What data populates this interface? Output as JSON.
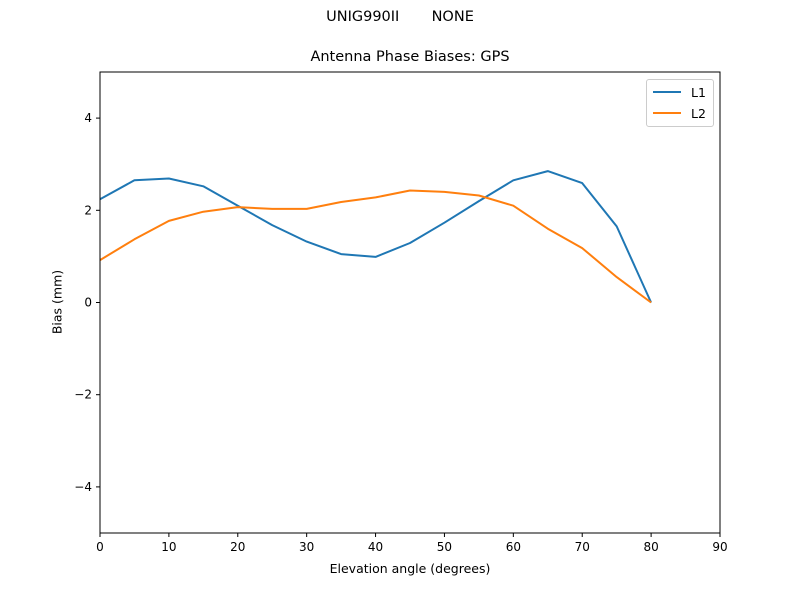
{
  "header": {
    "suptitle": "UNIG990II       NONE",
    "title": "Antenna Phase Biases: GPS"
  },
  "axes": {
    "xlabel": "Elevation angle (degrees)",
    "ylabel": "Bias (mm)"
  },
  "legend": {
    "items": [
      {
        "label": "L1",
        "color": "#1f77b4"
      },
      {
        "label": "L2",
        "color": "#ff7f0e"
      }
    ]
  },
  "chart_data": {
    "type": "line",
    "title": "Antenna Phase Biases: GPS",
    "suptitle": "UNIG990II       NONE",
    "xlabel": "Elevation angle (degrees)",
    "ylabel": "Bias (mm)",
    "xlim": [
      0,
      90
    ],
    "ylim": [
      -5,
      5
    ],
    "xticks": [
      0,
      10,
      20,
      30,
      40,
      50,
      60,
      70,
      80,
      90
    ],
    "yticks": [
      -4,
      -2,
      0,
      2,
      4
    ],
    "grid": false,
    "legend_position": "upper right",
    "x": [
      0,
      5,
      10,
      15,
      20,
      25,
      30,
      35,
      40,
      45,
      50,
      55,
      60,
      65,
      70,
      75,
      80
    ],
    "series": [
      {
        "name": "L1",
        "color": "#1f77b4",
        "values": [
          2.24,
          2.65,
          2.69,
          2.52,
          2.1,
          1.68,
          1.32,
          1.05,
          0.99,
          1.29,
          1.73,
          2.2,
          2.65,
          2.85,
          2.59,
          1.65,
          0.0
        ]
      },
      {
        "name": "L2",
        "color": "#ff7f0e",
        "values": [
          0.92,
          1.37,
          1.77,
          1.97,
          2.07,
          2.03,
          2.03,
          2.18,
          2.28,
          2.43,
          2.4,
          2.32,
          2.1,
          1.6,
          1.18,
          0.55,
          0.0
        ]
      }
    ]
  }
}
